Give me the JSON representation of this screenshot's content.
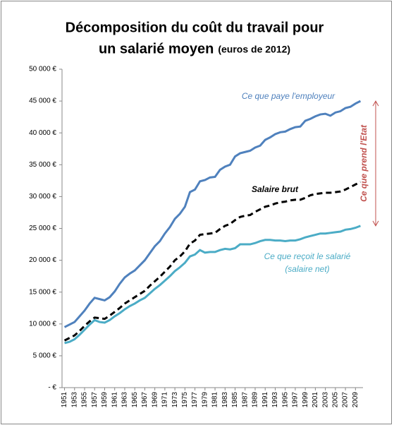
{
  "chart_data": {
    "type": "line",
    "title_lines": [
      "Décomposition du coût du travail pour",
      "un salarié moyen"
    ],
    "subtitle": "(euros de 2012)",
    "x": [
      1951,
      1952,
      1953,
      1954,
      1955,
      1956,
      1957,
      1958,
      1959,
      1960,
      1961,
      1962,
      1963,
      1964,
      1965,
      1966,
      1967,
      1968,
      1969,
      1970,
      1971,
      1972,
      1973,
      1974,
      1975,
      1976,
      1977,
      1978,
      1979,
      1980,
      1981,
      1982,
      1983,
      1984,
      1985,
      1986,
      1987,
      1988,
      1989,
      1990,
      1991,
      1992,
      1993,
      1994,
      1995,
      1996,
      1997,
      1998,
      1999,
      2000,
      2001,
      2002,
      2003,
      2004,
      2005,
      2006,
      2007,
      2008,
      2009,
      2010
    ],
    "xlim": [
      1950.5,
      2010.5
    ],
    "xticks": [
      1951,
      1953,
      1955,
      1957,
      1959,
      1961,
      1963,
      1965,
      1967,
      1969,
      1971,
      1973,
      1975,
      1977,
      1979,
      1981,
      1983,
      1985,
      1987,
      1989,
      1991,
      1993,
      1995,
      1997,
      1999,
      2001,
      2003,
      2005,
      2007,
      2009
    ],
    "ylim": [
      0,
      50000
    ],
    "yticks": [
      {
        "value": 0,
        "label": "-   €"
      },
      {
        "value": 5000,
        "label": "5 000 €"
      },
      {
        "value": 10000,
        "label": "10 000 €"
      },
      {
        "value": 15000,
        "label": "15 000 €"
      },
      {
        "value": 20000,
        "label": "20 000 €"
      },
      {
        "value": 25000,
        "label": "25 000 €"
      },
      {
        "value": 30000,
        "label": "30 000 €"
      },
      {
        "value": 35000,
        "label": "35 000 €"
      },
      {
        "value": 40000,
        "label": "40 000 €"
      },
      {
        "value": 45000,
        "label": "45 000 €"
      },
      {
        "value": 50000,
        "label": "50 000 €"
      }
    ],
    "series": [
      {
        "name": "Ce que paye l'employeur",
        "color": "#4f81bd",
        "dashed": false,
        "values": [
          9500,
          9900,
          10300,
          11200,
          12100,
          13200,
          14100,
          13900,
          13700,
          14200,
          15100,
          16300,
          17300,
          17900,
          18400,
          19200,
          20000,
          21100,
          22200,
          23000,
          24200,
          25200,
          26500,
          27300,
          28400,
          30700,
          31100,
          32400,
          32600,
          33000,
          33100,
          34200,
          34700,
          35000,
          36300,
          36800,
          37000,
          37200,
          37700,
          38000,
          38900,
          39300,
          39800,
          40100,
          40200,
          40600,
          40900,
          41000,
          41900,
          42200,
          42600,
          42900,
          43000,
          42700,
          43200,
          43400,
          43900,
          44100,
          44600,
          45000
        ]
      },
      {
        "name": "Salaire brut",
        "color": "#000000",
        "dashed": true,
        "values": [
          7400,
          7800,
          8200,
          8900,
          9700,
          10400,
          11000,
          10900,
          10800,
          11300,
          11900,
          12500,
          13200,
          13700,
          14200,
          14700,
          15200,
          16000,
          16700,
          17400,
          18200,
          19000,
          20000,
          20600,
          21400,
          22600,
          23100,
          24000,
          24100,
          24200,
          24300,
          24900,
          25400,
          25700,
          26300,
          26800,
          27000,
          27100,
          27600,
          28000,
          28400,
          28600,
          28900,
          29100,
          29200,
          29400,
          29500,
          29500,
          29800,
          30200,
          30400,
          30500,
          30600,
          30600,
          30700,
          30800,
          31100,
          31500,
          31900,
          32300
        ]
      },
      {
        "name": "Ce que reçoit le salarié",
        "note": "(salaire net)",
        "color": "#4bacc6",
        "dashed": false,
        "values": [
          7000,
          7200,
          7600,
          8300,
          9100,
          9900,
          10600,
          10300,
          10200,
          10600,
          11200,
          11700,
          12300,
          12800,
          13200,
          13700,
          14100,
          14800,
          15500,
          16100,
          16800,
          17500,
          18300,
          18900,
          19600,
          20600,
          20900,
          21600,
          21200,
          21300,
          21300,
          21600,
          21800,
          21700,
          21900,
          22500,
          22500,
          22500,
          22700,
          23000,
          23200,
          23200,
          23100,
          23100,
          23000,
          23100,
          23100,
          23300,
          23600,
          23800,
          24000,
          24200,
          24200,
          24300,
          24400,
          24500,
          24800,
          24900,
          25100,
          25400
        ]
      }
    ],
    "gap_label": "Ce que prend l'Etat",
    "gap_color": "#c0504d"
  }
}
